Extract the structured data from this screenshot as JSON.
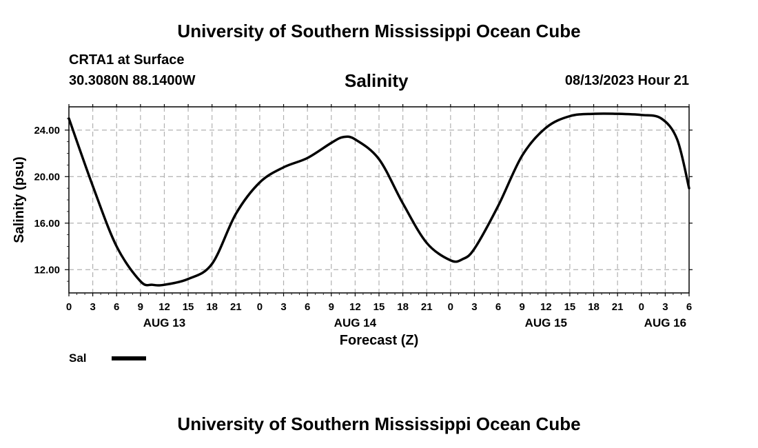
{
  "header": {
    "title_top": "University of Southern Mississippi Ocean Cube",
    "station": "CRTA1 at Surface",
    "coords": "30.3080N  88.1400W",
    "variable": "Salinity",
    "datetime": "08/13/2023 Hour 21"
  },
  "legend": {
    "label": "Sal"
  },
  "footer": {
    "title_bottom": "University of Southern Mississippi Ocean Cube"
  },
  "chart_data": {
    "type": "line",
    "title": "Salinity",
    "xlabel": "Forecast (Z)",
    "ylabel": "Salinity (psu)",
    "xlim": [
      0,
      78
    ],
    "ylim": [
      10,
      26
    ],
    "grid": true,
    "yticks": [
      12,
      16,
      20,
      24
    ],
    "ytick_labels": [
      "12.00",
      "16.00",
      "20.00",
      "24.00"
    ],
    "xticks": [
      0,
      3,
      6,
      9,
      12,
      15,
      18,
      21,
      24,
      27,
      30,
      33,
      36,
      39,
      42,
      45,
      48,
      51,
      54,
      57,
      60,
      63,
      66,
      69,
      72,
      75,
      78
    ],
    "xtick_labels": [
      "0",
      "3",
      "6",
      "9",
      "12",
      "15",
      "18",
      "21",
      "0",
      "3",
      "6",
      "9",
      "12",
      "15",
      "18",
      "21",
      "0",
      "3",
      "6",
      "9",
      "12",
      "15",
      "18",
      "21",
      "0",
      "3",
      "6"
    ],
    "date_labels": [
      {
        "x": 12,
        "label": "AUG 13"
      },
      {
        "x": 36,
        "label": "AUG 14"
      },
      {
        "x": 60,
        "label": "AUG 15"
      },
      {
        "x": 75,
        "label": "AUG 16"
      }
    ],
    "series": [
      {
        "name": "Sal",
        "x": [
          0,
          3,
          6,
          9,
          10.5,
          12,
          15,
          18,
          21,
          24,
          27,
          30,
          33,
          34.5,
          36,
          39,
          42,
          45,
          48,
          49.5,
          51,
          54,
          57,
          60,
          63,
          66,
          69,
          72,
          74.5,
          76.5,
          78
        ],
        "values": [
          25.0,
          19.2,
          14.0,
          11.0,
          10.7,
          10.7,
          11.2,
          12.5,
          16.8,
          19.5,
          20.8,
          21.6,
          22.9,
          23.4,
          23.2,
          21.5,
          17.7,
          14.3,
          12.8,
          12.9,
          13.8,
          17.5,
          21.8,
          24.2,
          25.2,
          25.4,
          25.4,
          25.3,
          25.0,
          23.2,
          19.0
        ]
      }
    ]
  }
}
